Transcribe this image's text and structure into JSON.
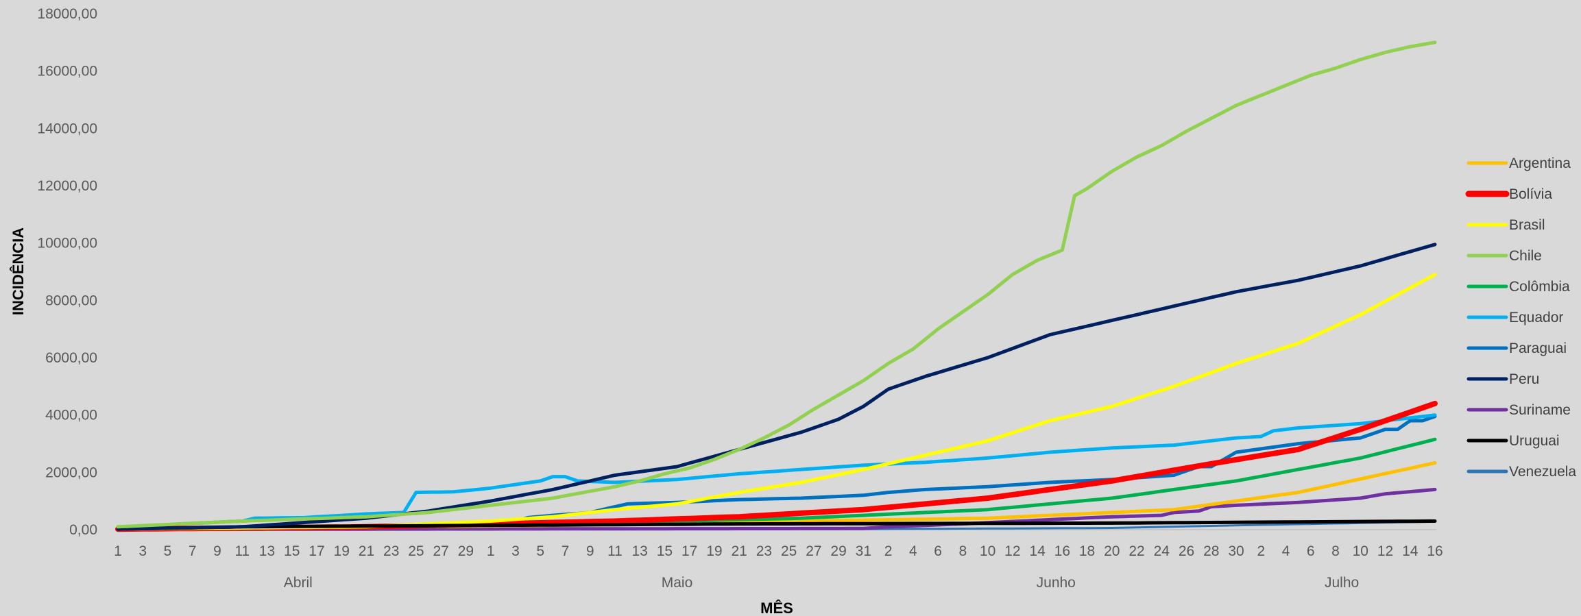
{
  "chart_data": {
    "type": "line",
    "title": "",
    "xlabel": "MÊS",
    "ylabel": "INCIDÊNCIA",
    "ylim": [
      0,
      18000
    ],
    "y_ticks": [
      "0,00",
      "2000,00",
      "4000,00",
      "6000,00",
      "8000,00",
      "10000,00",
      "12000,00",
      "14000,00",
      "16000,00",
      "18000,00"
    ],
    "x_tick_labels": [
      "1",
      "3",
      "5",
      "7",
      "9",
      "11",
      "13",
      "15",
      "17",
      "19",
      "21",
      "23",
      "25",
      "27",
      "29",
      "1",
      "3",
      "5",
      "7",
      "9",
      "11",
      "13",
      "15",
      "17",
      "19",
      "21",
      "23",
      "25",
      "27",
      "29",
      "31",
      "2",
      "4",
      "6",
      "8",
      "10",
      "12",
      "14",
      "16",
      "18",
      "20",
      "22",
      "24",
      "26",
      "28",
      "30",
      "2",
      "4",
      "6",
      "8",
      "10",
      "12",
      "14",
      "16"
    ],
    "months": [
      {
        "label": "Abril",
        "start_day": 0,
        "end_day": 29
      },
      {
        "label": "Maio",
        "start_day": 30,
        "end_day": 60
      },
      {
        "label": "Junho",
        "start_day": 61,
        "end_day": 90
      },
      {
        "label": "Julho",
        "start_day": 91,
        "end_day": 106
      }
    ],
    "x": "daily from 1 April to 16 July (107 points); series values listed in date order",
    "legend_position": "right",
    "grid": false,
    "series": [
      {
        "name": "Argentina",
        "color": "#ffc000",
        "width": 5,
        "anchors": [
          [
            0,
            20
          ],
          [
            20,
            80
          ],
          [
            40,
            180
          ],
          [
            55,
            300
          ],
          [
            70,
            400
          ],
          [
            85,
            700
          ],
          [
            95,
            1300
          ],
          [
            106,
            2330
          ]
        ]
      },
      {
        "name": "Bolívia",
        "color": "#ff0000",
        "width": 8,
        "anchors": [
          [
            0,
            20
          ],
          [
            20,
            100
          ],
          [
            40,
            300
          ],
          [
            50,
            450
          ],
          [
            60,
            700
          ],
          [
            70,
            1100
          ],
          [
            80,
            1700
          ],
          [
            88,
            2300
          ],
          [
            95,
            2800
          ],
          [
            100,
            3500
          ],
          [
            106,
            4400
          ]
        ]
      },
      {
        "name": "Brasil",
        "color": "#ffff00",
        "width": 5,
        "anchors": [
          [
            0,
            20
          ],
          [
            20,
            100
          ],
          [
            30,
            300
          ],
          [
            35,
            450
          ],
          [
            40,
            700
          ],
          [
            45,
            900
          ],
          [
            50,
            1300
          ],
          [
            55,
            1650
          ],
          [
            60,
            2100
          ],
          [
            65,
            2600
          ],
          [
            70,
            3100
          ],
          [
            75,
            3800
          ],
          [
            80,
            4300
          ],
          [
            85,
            5000
          ],
          [
            90,
            5800
          ],
          [
            95,
            6500
          ],
          [
            100,
            7500
          ],
          [
            106,
            8900
          ]
        ]
      },
      {
        "name": "Chile",
        "color": "#92d050",
        "width": 5,
        "anchors": [
          [
            0,
            100
          ],
          [
            5,
            200
          ],
          [
            10,
            300
          ],
          [
            20,
            450
          ],
          [
            25,
            600
          ],
          [
            30,
            850
          ],
          [
            35,
            1100
          ],
          [
            40,
            1500
          ],
          [
            42,
            1700
          ],
          [
            44,
            1950
          ],
          [
            46,
            2150
          ],
          [
            48,
            2450
          ],
          [
            50,
            2800
          ],
          [
            52,
            3200
          ],
          [
            54,
            3650
          ],
          [
            56,
            4200
          ],
          [
            58,
            4700
          ],
          [
            60,
            5200
          ],
          [
            62,
            5800
          ],
          [
            64,
            6300
          ],
          [
            66,
            7000
          ],
          [
            68,
            7600
          ],
          [
            70,
            8200
          ],
          [
            72,
            8900
          ],
          [
            74,
            9400
          ],
          [
            76,
            9750
          ],
          [
            77,
            11650
          ],
          [
            78,
            11900
          ],
          [
            80,
            12500
          ],
          [
            82,
            13000
          ],
          [
            84,
            13400
          ],
          [
            86,
            13900
          ],
          [
            88,
            14350
          ],
          [
            90,
            14800
          ],
          [
            92,
            15150
          ],
          [
            94,
            15500
          ],
          [
            96,
            15850
          ],
          [
            98,
            16100
          ],
          [
            100,
            16400
          ],
          [
            102,
            16650
          ],
          [
            104,
            16850
          ],
          [
            106,
            17000
          ]
        ]
      },
      {
        "name": "Colômbia",
        "color": "#00b050",
        "width": 5,
        "anchors": [
          [
            0,
            20
          ],
          [
            20,
            100
          ],
          [
            40,
            250
          ],
          [
            55,
            400
          ],
          [
            70,
            700
          ],
          [
            80,
            1100
          ],
          [
            90,
            1700
          ],
          [
            100,
            2500
          ],
          [
            106,
            3150
          ]
        ]
      },
      {
        "name": "Equador",
        "color": "#00b0f0",
        "width": 5,
        "anchors": [
          [
            0,
            50
          ],
          [
            5,
            200
          ],
          [
            10,
            300
          ],
          [
            11,
            400
          ],
          [
            15,
            420
          ],
          [
            20,
            550
          ],
          [
            23,
            600
          ],
          [
            24,
            1300
          ],
          [
            27,
            1320
          ],
          [
            30,
            1450
          ],
          [
            34,
            1700
          ],
          [
            35,
            1850
          ],
          [
            36,
            1850
          ],
          [
            37,
            1700
          ],
          [
            40,
            1650
          ],
          [
            45,
            1750
          ],
          [
            50,
            1950
          ],
          [
            55,
            2100
          ],
          [
            60,
            2250
          ],
          [
            65,
            2350
          ],
          [
            70,
            2500
          ],
          [
            75,
            2700
          ],
          [
            80,
            2850
          ],
          [
            85,
            2950
          ],
          [
            90,
            3200
          ],
          [
            92,
            3250
          ],
          [
            93,
            3450
          ],
          [
            95,
            3550
          ],
          [
            100,
            3700
          ],
          [
            106,
            4000
          ]
        ]
      },
      {
        "name": "Paraguai",
        "color": "#0070c0",
        "width": 5,
        "anchors": [
          [
            0,
            20
          ],
          [
            25,
            100
          ],
          [
            30,
            200
          ],
          [
            32,
            300
          ],
          [
            33,
            420
          ],
          [
            35,
            500
          ],
          [
            37,
            560
          ],
          [
            38,
            600
          ],
          [
            40,
            800
          ],
          [
            41,
            900
          ],
          [
            45,
            950
          ],
          [
            50,
            1050
          ],
          [
            55,
            1100
          ],
          [
            60,
            1200
          ],
          [
            62,
            1300
          ],
          [
            65,
            1400
          ],
          [
            70,
            1500
          ],
          [
            75,
            1650
          ],
          [
            80,
            1750
          ],
          [
            85,
            1900
          ],
          [
            87,
            2200
          ],
          [
            88,
            2200
          ],
          [
            90,
            2700
          ],
          [
            95,
            3000
          ],
          [
            100,
            3200
          ],
          [
            102,
            3500
          ],
          [
            103,
            3500
          ],
          [
            104,
            3800
          ],
          [
            105,
            3800
          ],
          [
            106,
            3950
          ]
        ]
      },
      {
        "name": "Peru",
        "color": "#002060",
        "width": 5,
        "anchors": [
          [
            0,
            20
          ],
          [
            10,
            100
          ],
          [
            15,
            250
          ],
          [
            20,
            400
          ],
          [
            25,
            650
          ],
          [
            30,
            1000
          ],
          [
            35,
            1400
          ],
          [
            40,
            1900
          ],
          [
            45,
            2200
          ],
          [
            50,
            2800
          ],
          [
            55,
            3400
          ],
          [
            58,
            3850
          ],
          [
            60,
            4300
          ],
          [
            62,
            4900
          ],
          [
            65,
            5350
          ],
          [
            70,
            6000
          ],
          [
            75,
            6800
          ],
          [
            80,
            7300
          ],
          [
            85,
            7800
          ],
          [
            90,
            8300
          ],
          [
            95,
            8700
          ],
          [
            100,
            9200
          ],
          [
            106,
            9950
          ]
        ]
      },
      {
        "name": "Suriname",
        "color": "#7030a0",
        "width": 5,
        "anchors": [
          [
            0,
            10
          ],
          [
            60,
            40
          ],
          [
            62,
            100
          ],
          [
            68,
            200
          ],
          [
            75,
            350
          ],
          [
            80,
            450
          ],
          [
            84,
            500
          ],
          [
            85,
            600
          ],
          [
            87,
            650
          ],
          [
            88,
            800
          ],
          [
            90,
            850
          ],
          [
            95,
            950
          ],
          [
            100,
            1100
          ],
          [
            102,
            1250
          ],
          [
            106,
            1400
          ]
        ]
      },
      {
        "name": "Uruguai",
        "color": "#000000",
        "width": 5,
        "anchors": [
          [
            0,
            20
          ],
          [
            10,
            100
          ],
          [
            30,
            150
          ],
          [
            50,
            200
          ],
          [
            80,
            230
          ],
          [
            106,
            300
          ]
        ]
      },
      {
        "name": "Venezuela",
        "color": "#2e75b6",
        "width": 3,
        "anchors": [
          [
            0,
            5
          ],
          [
            60,
            20
          ],
          [
            80,
            60
          ],
          [
            90,
            150
          ],
          [
            106,
            280
          ]
        ]
      }
    ]
  }
}
